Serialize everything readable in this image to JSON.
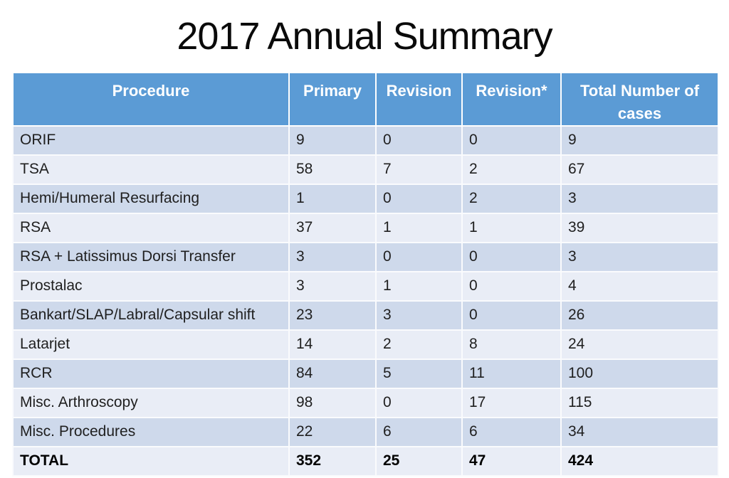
{
  "chart_data": {
    "type": "table",
    "title": "2017 Annual Summary",
    "columns": [
      "Procedure",
      "Primary",
      "Revision",
      "Revision*",
      "Total Number of cases"
    ],
    "rows": [
      [
        "ORIF",
        "9",
        "0",
        "0",
        "9"
      ],
      [
        "TSA",
        "58",
        "7",
        "2",
        "67"
      ],
      [
        "Hemi/Humeral Resurfacing",
        "1",
        "0",
        "2",
        "3"
      ],
      [
        "RSA",
        "37",
        "1",
        "1",
        "39"
      ],
      [
        "RSA + Latissimus Dorsi Transfer",
        "3",
        "0",
        "0",
        "3"
      ],
      [
        "Prostalac",
        "3",
        "1",
        "0",
        "4"
      ],
      [
        "Bankart/SLAP/Labral/Capsular shift",
        "23",
        "3",
        "0",
        "26"
      ],
      [
        "Latarjet",
        "14",
        "2",
        "8",
        "24"
      ],
      [
        "RCR",
        "84",
        "5",
        "11",
        "100"
      ],
      [
        "Misc. Arthroscopy",
        "98",
        "0",
        "17",
        "115"
      ],
      [
        "Misc. Procedures",
        "22",
        "6",
        "6",
        "34"
      ]
    ],
    "total_row": [
      "TOTAL",
      "352",
      "25",
      "47",
      "424"
    ],
    "layout_hints": {
      "banding": "alternating rows starting dark",
      "header_position": "top",
      "grid": "white cell separators"
    }
  },
  "colors": {
    "header_bg": "#5B9BD5",
    "band_dark": "#CED9EB",
    "band_light": "#E9EDF6",
    "header_text": "#FFFFFF",
    "body_text": "#1F1F1F",
    "title_text": "#0A0A0A"
  }
}
